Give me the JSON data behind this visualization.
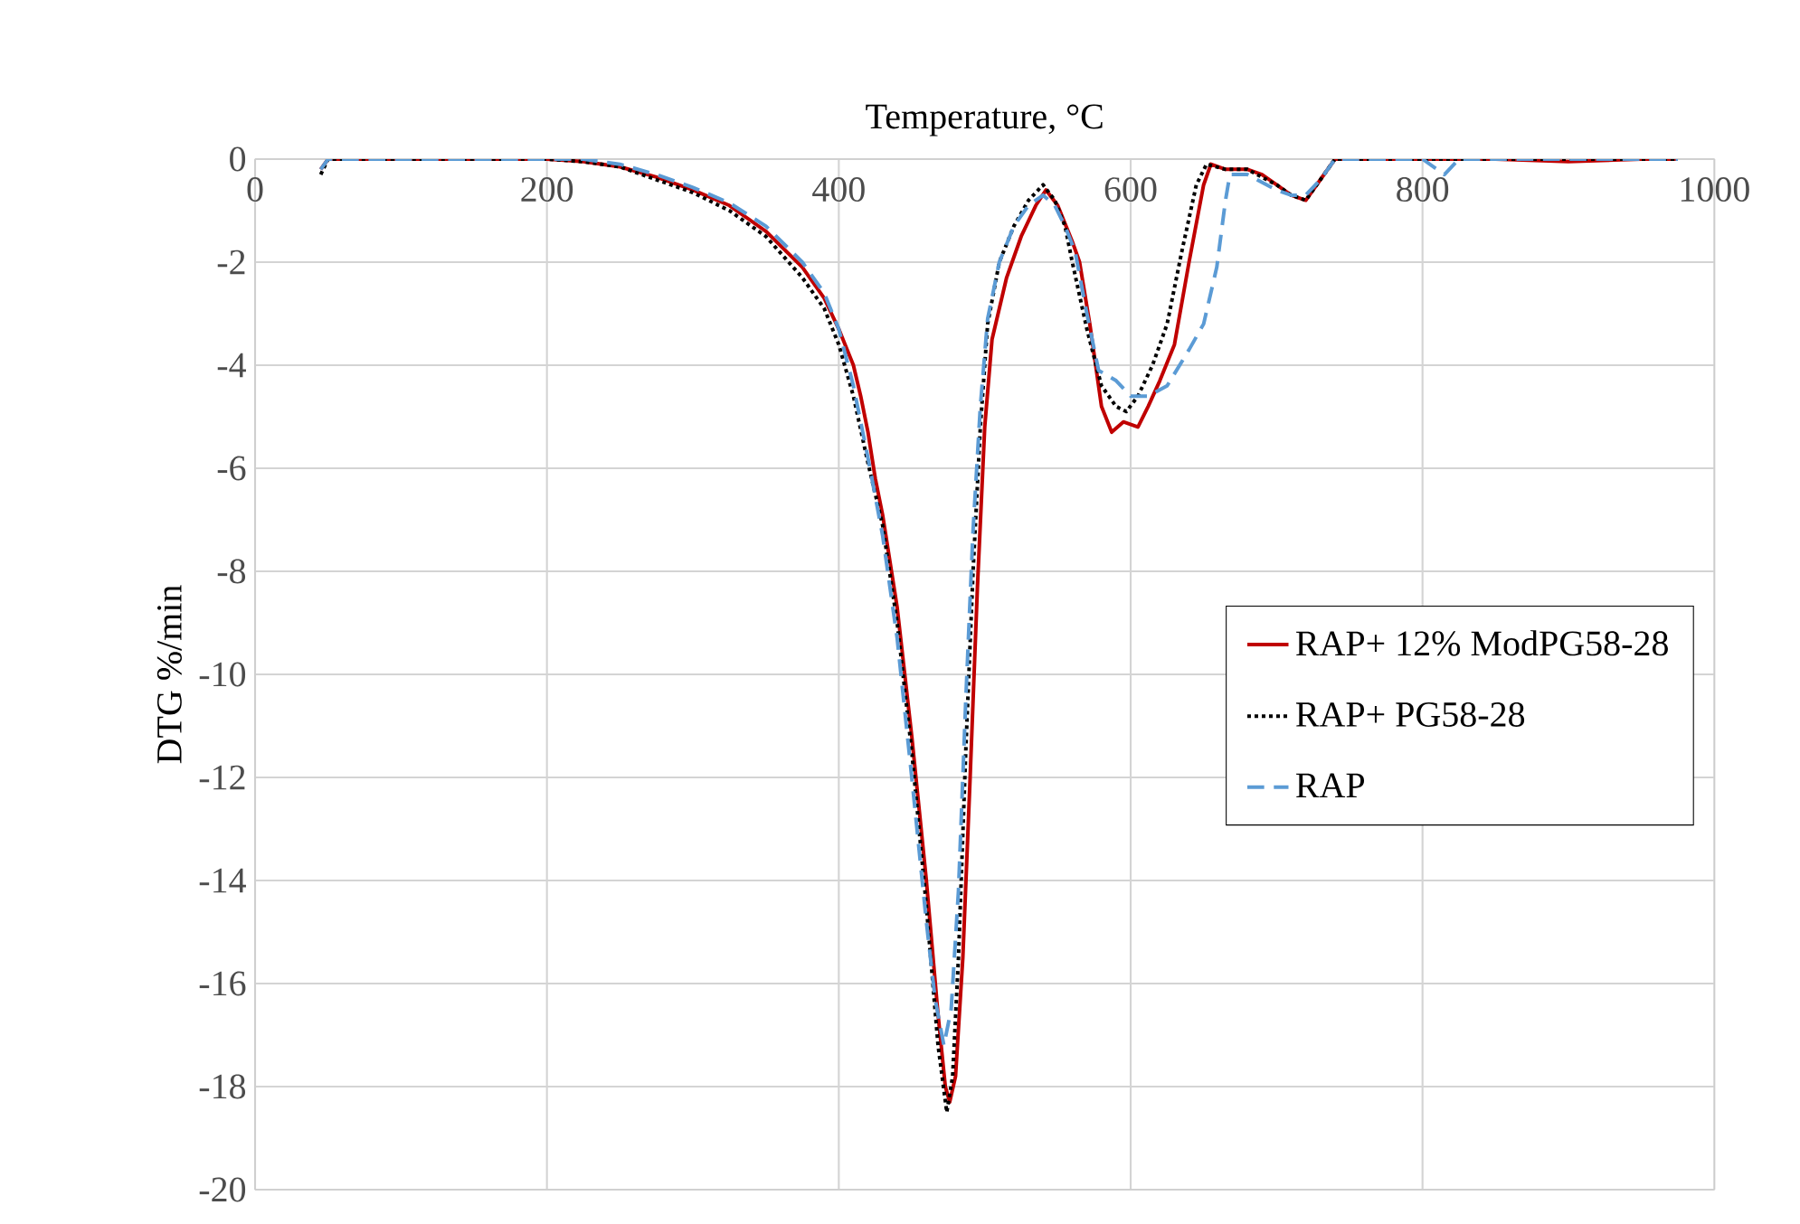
{
  "chart_data": {
    "type": "line",
    "xlabel": "Temperature, °C",
    "ylabel": "DTG %/min",
    "xlim": [
      0,
      1000
    ],
    "ylim": [
      -20,
      0
    ],
    "xticks": [
      0,
      200,
      400,
      600,
      800,
      1000
    ],
    "yticks": [
      -20,
      -18,
      -16,
      -14,
      -12,
      -10,
      -8,
      -6,
      -4,
      -2,
      0
    ],
    "grid": true,
    "legend": "right",
    "marker": "none",
    "series": [
      {
        "name": "RAP+ 12% ModPG58-28",
        "color": "#c00000",
        "line_style": "solid",
        "x": [
          45,
          50,
          100,
          150,
          200,
          225,
          250,
          275,
          300,
          325,
          350,
          375,
          390,
          400,
          410,
          415,
          420,
          425,
          430,
          440,
          450,
          460,
          468,
          473,
          476,
          480,
          485,
          490,
          495,
          500,
          505,
          515,
          525,
          535,
          542,
          550,
          560,
          565,
          572,
          580,
          587,
          595,
          605,
          612,
          620,
          630,
          640,
          650,
          655,
          665,
          680,
          690,
          700,
          710,
          720,
          730,
          740,
          800,
          850,
          900,
          950,
          975
        ],
        "values": [
          -0.2,
          0,
          0,
          0,
          0,
          -0.05,
          -0.15,
          -0.35,
          -0.6,
          -0.9,
          -1.4,
          -2.1,
          -2.7,
          -3.3,
          -4.0,
          -4.6,
          -5.3,
          -6.2,
          -6.9,
          -8.7,
          -11.2,
          -14.0,
          -16.6,
          -18.0,
          -18.3,
          -17.8,
          -15.5,
          -12.0,
          -8.3,
          -5.2,
          -3.5,
          -2.3,
          -1.5,
          -0.9,
          -0.6,
          -0.9,
          -1.6,
          -2.0,
          -3.2,
          -4.8,
          -5.3,
          -5.1,
          -5.2,
          -4.8,
          -4.3,
          -3.6,
          -2.0,
          -0.5,
          -0.1,
          -0.2,
          -0.2,
          -0.3,
          -0.5,
          -0.7,
          -0.8,
          -0.4,
          0,
          0,
          0,
          -0.05,
          0,
          0
        ]
      },
      {
        "name": "RAP+ PG58-28",
        "color": "#000000",
        "line_style": "dotted",
        "x": [
          45,
          50,
          100,
          150,
          200,
          225,
          250,
          275,
          300,
          325,
          350,
          375,
          390,
          400,
          410,
          420,
          430,
          440,
          450,
          460,
          468,
          474,
          478,
          482,
          487,
          492,
          497,
          502,
          510,
          520,
          530,
          540,
          548,
          555,
          560,
          570,
          580,
          590,
          597,
          605,
          615,
          625,
          635,
          645,
          652,
          665,
          680,
          700,
          710,
          720,
          730,
          740,
          800,
          850,
          900,
          950,
          975
        ],
        "values": [
          -0.3,
          0,
          0,
          0,
          0,
          -0.05,
          -0.15,
          -0.4,
          -0.65,
          -1.0,
          -1.5,
          -2.3,
          -2.9,
          -3.6,
          -4.6,
          -5.9,
          -7.1,
          -9.0,
          -11.5,
          -14.5,
          -17.2,
          -18.5,
          -17.8,
          -15.5,
          -11.5,
          -8.0,
          -5.2,
          -3.2,
          -2.0,
          -1.3,
          -0.8,
          -0.5,
          -0.8,
          -1.3,
          -2.0,
          -3.3,
          -4.4,
          -4.8,
          -4.9,
          -4.6,
          -4.0,
          -3.2,
          -1.8,
          -0.5,
          -0.1,
          -0.2,
          -0.2,
          -0.5,
          -0.7,
          -0.8,
          -0.4,
          0,
          0,
          0,
          0,
          0,
          0
        ]
      },
      {
        "name": "RAP",
        "color": "#5b9bd5",
        "line_style": "dashed",
        "x": [
          45,
          50,
          100,
          150,
          200,
          225,
          250,
          275,
          300,
          325,
          350,
          375,
          390,
          400,
          410,
          420,
          430,
          440,
          450,
          460,
          466,
          472,
          477,
          482,
          487,
          492,
          497,
          502,
          510,
          520,
          530,
          540,
          548,
          555,
          562,
          570,
          578,
          590,
          600,
          612,
          625,
          640,
          650,
          659,
          665,
          668,
          680,
          700,
          710,
          720,
          730,
          740,
          800,
          815,
          825,
          850,
          900,
          950,
          975
        ],
        "values": [
          -0.2,
          0,
          0,
          0,
          0,
          0,
          -0.1,
          -0.3,
          -0.55,
          -0.85,
          -1.3,
          -2.0,
          -2.6,
          -3.3,
          -4.4,
          -5.8,
          -7.3,
          -9.3,
          -12.0,
          -14.8,
          -16.3,
          -17.2,
          -16.5,
          -14.2,
          -10.5,
          -7.2,
          -4.8,
          -3.1,
          -2.0,
          -1.3,
          -0.9,
          -0.7,
          -0.9,
          -1.3,
          -1.8,
          -3.0,
          -4.1,
          -4.3,
          -4.6,
          -4.6,
          -4.4,
          -3.7,
          -3.2,
          -2.1,
          -0.8,
          -0.3,
          -0.3,
          -0.6,
          -0.7,
          -0.7,
          -0.4,
          0,
          0,
          -0.3,
          0,
          0,
          0,
          0,
          0
        ]
      }
    ]
  }
}
